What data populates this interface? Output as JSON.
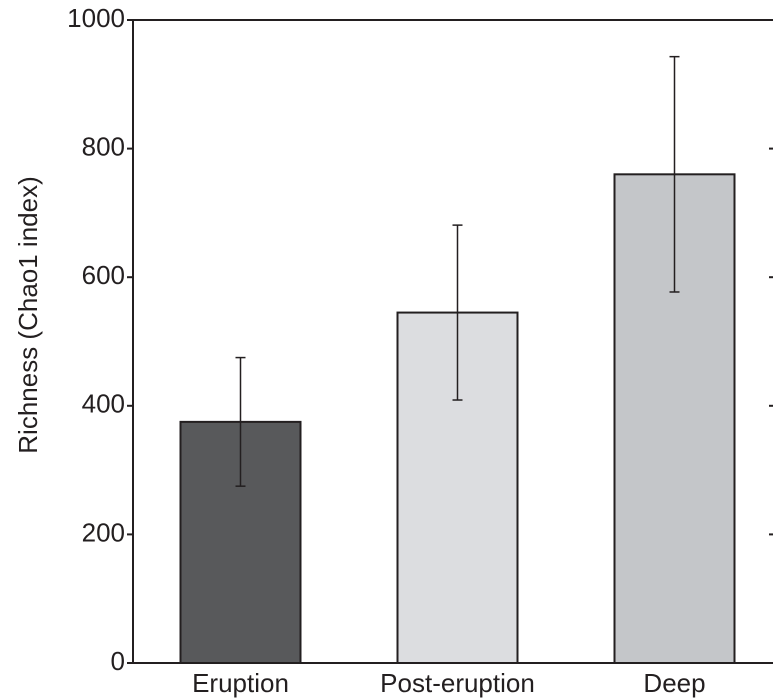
{
  "chart_data": {
    "type": "bar",
    "y_label": "Richness (Chao1 index)",
    "categories": [
      "Eruption",
      "Post-eruption",
      "Deep"
    ],
    "values": [
      375,
      545,
      760
    ],
    "errors": [
      100,
      136,
      183
    ],
    "colors": [
      "#58595b",
      "#dcdde0",
      "#c4c6c9"
    ],
    "ylim": [
      0,
      1000
    ],
    "yticks": [
      0,
      200,
      400,
      600,
      800,
      1000
    ]
  }
}
